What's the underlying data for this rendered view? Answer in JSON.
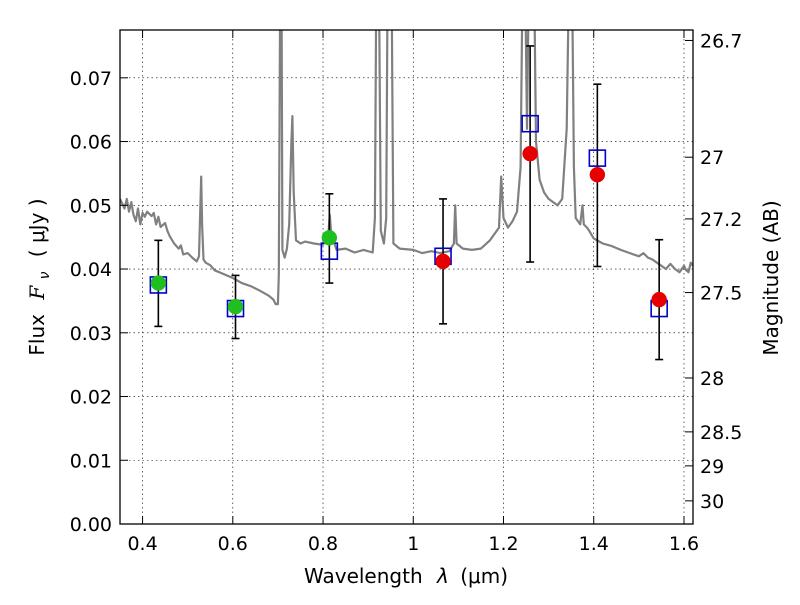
{
  "chart_data": {
    "type": "scatter",
    "xlabel": "Wavelength",
    "xlabel_symbol": "λ",
    "xlabel_unit": "(μm)",
    "ylabel": "Flux",
    "ylabel_symbol": "F",
    "ylabel_subscript": "ν",
    "ylabel_unit": "( μJy )",
    "ylabel_right": "Magnitude (AB)",
    "xlim": [
      0.35,
      1.62
    ],
    "ylim": [
      0.0,
      0.0775
    ],
    "grid": true,
    "x_ticks": [
      {
        "value": 0.4,
        "label": "0.4"
      },
      {
        "value": 0.6,
        "label": "0.6"
      },
      {
        "value": 0.8,
        "label": "0.8"
      },
      {
        "value": 1.0,
        "label": "1"
      },
      {
        "value": 1.2,
        "label": "1.2"
      },
      {
        "value": 1.4,
        "label": "1.4"
      },
      {
        "value": 1.6,
        "label": "1.6"
      }
    ],
    "y_ticks": [
      {
        "value": 0.0,
        "label": "0.00"
      },
      {
        "value": 0.01,
        "label": "0.01"
      },
      {
        "value": 0.02,
        "label": "0.02"
      },
      {
        "value": 0.03,
        "label": "0.03"
      },
      {
        "value": 0.04,
        "label": "0.04"
      },
      {
        "value": 0.05,
        "label": "0.05"
      },
      {
        "value": 0.06,
        "label": "0.06"
      },
      {
        "value": 0.07,
        "label": "0.07"
      }
    ],
    "mag_ticks": [
      {
        "mag": 26.7,
        "label": "26.7"
      },
      {
        "mag": 27.0,
        "label": "27"
      },
      {
        "mag": 27.2,
        "label": "27.2"
      },
      {
        "mag": 27.5,
        "label": "27.5"
      },
      {
        "mag": 28.0,
        "label": "28"
      },
      {
        "mag": 28.5,
        "label": "28.5"
      },
      {
        "mag": 29.0,
        "label": "29"
      },
      {
        "mag": 30.0,
        "label": "30"
      }
    ],
    "observed": [
      {
        "x": 0.435,
        "y": 0.0378,
        "err_low": 0.031,
        "err_high": 0.0445,
        "color": "#1fbf1f"
      },
      {
        "x": 0.606,
        "y": 0.0341,
        "err_low": 0.0291,
        "err_high": 0.039,
        "color": "#1fbf1f"
      },
      {
        "x": 0.814,
        "y": 0.0449,
        "err_low": 0.0378,
        "err_high": 0.0518,
        "color": "#1fbf1f"
      },
      {
        "x": 1.066,
        "y": 0.0412,
        "err_low": 0.0314,
        "err_high": 0.051,
        "color": "#e60000"
      },
      {
        "x": 1.259,
        "y": 0.0581,
        "err_low": 0.0411,
        "err_high": 0.075,
        "color": "#e60000"
      },
      {
        "x": 1.408,
        "y": 0.0548,
        "err_low": 0.0404,
        "err_high": 0.069,
        "color": "#e60000"
      },
      {
        "x": 1.545,
        "y": 0.0352,
        "err_low": 0.0258,
        "err_high": 0.0446,
        "color": "#e60000"
      }
    ],
    "model_photometry": [
      {
        "x": 0.435,
        "y": 0.0375
      },
      {
        "x": 0.606,
        "y": 0.0338
      },
      {
        "x": 0.814,
        "y": 0.0428
      },
      {
        "x": 1.066,
        "y": 0.042
      },
      {
        "x": 1.259,
        "y": 0.0628
      },
      {
        "x": 1.408,
        "y": 0.0574
      },
      {
        "x": 1.545,
        "y": 0.0338
      }
    ],
    "spectrum": [
      [
        0.35,
        0.051
      ],
      [
        0.36,
        0.0495
      ],
      [
        0.365,
        0.051
      ],
      [
        0.37,
        0.049
      ],
      [
        0.375,
        0.0505
      ],
      [
        0.38,
        0.0485
      ],
      [
        0.385,
        0.0475
      ],
      [
        0.39,
        0.0495
      ],
      [
        0.395,
        0.047
      ],
      [
        0.4,
        0.0488
      ],
      [
        0.405,
        0.0482
      ],
      [
        0.41,
        0.049
      ],
      [
        0.42,
        0.0483
      ],
      [
        0.425,
        0.0488
      ],
      [
        0.43,
        0.047
      ],
      [
        0.435,
        0.0482
      ],
      [
        0.44,
        0.0466
      ],
      [
        0.45,
        0.0472
      ],
      [
        0.455,
        0.046
      ],
      [
        0.46,
        0.0452
      ],
      [
        0.47,
        0.044
      ],
      [
        0.48,
        0.0432
      ],
      [
        0.485,
        0.0437
      ],
      [
        0.49,
        0.0423
      ],
      [
        0.5,
        0.0425
      ],
      [
        0.51,
        0.0418
      ],
      [
        0.52,
        0.0412
      ],
      [
        0.525,
        0.042
      ],
      [
        0.528,
        0.0495
      ],
      [
        0.53,
        0.0545
      ],
      [
        0.532,
        0.047
      ],
      [
        0.535,
        0.0415
      ],
      [
        0.54,
        0.041
      ],
      [
        0.55,
        0.0406
      ],
      [
        0.56,
        0.0398
      ],
      [
        0.58,
        0.0392
      ],
      [
        0.6,
        0.0386
      ],
      [
        0.62,
        0.0378
      ],
      [
        0.64,
        0.0373
      ],
      [
        0.66,
        0.0366
      ],
      [
        0.68,
        0.0358
      ],
      [
        0.69,
        0.0352
      ],
      [
        0.695,
        0.0345
      ],
      [
        0.7,
        0.0345
      ],
      [
        0.702,
        0.039
      ],
      [
        0.705,
        0.085
      ],
      [
        0.708,
        0.085
      ],
      [
        0.71,
        0.043
      ],
      [
        0.715,
        0.0418
      ],
      [
        0.72,
        0.0432
      ],
      [
        0.725,
        0.047
      ],
      [
        0.73,
        0.06
      ],
      [
        0.732,
        0.064
      ],
      [
        0.735,
        0.052
      ],
      [
        0.74,
        0.0445
      ],
      [
        0.75,
        0.044
      ],
      [
        0.76,
        0.0443
      ],
      [
        0.78,
        0.044
      ],
      [
        0.8,
        0.0438
      ],
      [
        0.812,
        0.0455
      ],
      [
        0.815,
        0.0485
      ],
      [
        0.818,
        0.0455
      ],
      [
        0.83,
        0.043
      ],
      [
        0.85,
        0.0432
      ],
      [
        0.87,
        0.0426
      ],
      [
        0.89,
        0.043
      ],
      [
        0.91,
        0.0426
      ],
      [
        0.915,
        0.048
      ],
      [
        0.918,
        0.085
      ],
      [
        0.924,
        0.085
      ],
      [
        0.928,
        0.046
      ],
      [
        0.935,
        0.044
      ],
      [
        0.94,
        0.048
      ],
      [
        0.943,
        0.085
      ],
      [
        0.952,
        0.085
      ],
      [
        0.956,
        0.044
      ],
      [
        0.97,
        0.0432
      ],
      [
        1.0,
        0.043
      ],
      [
        1.02,
        0.0425
      ],
      [
        1.04,
        0.0428
      ],
      [
        1.06,
        0.0425
      ],
      [
        1.08,
        0.0428
      ],
      [
        1.09,
        0.044
      ],
      [
        1.093,
        0.05
      ],
      [
        1.096,
        0.044
      ],
      [
        1.11,
        0.0432
      ],
      [
        1.13,
        0.043
      ],
      [
        1.15,
        0.0432
      ],
      [
        1.17,
        0.0445
      ],
      [
        1.19,
        0.0465
      ],
      [
        1.195,
        0.0545
      ],
      [
        1.2,
        0.048
      ],
      [
        1.21,
        0.0465
      ],
      [
        1.22,
        0.0475
      ],
      [
        1.23,
        0.049
      ],
      [
        1.238,
        0.056
      ],
      [
        1.242,
        0.085
      ],
      [
        1.248,
        0.085
      ],
      [
        1.252,
        0.062
      ],
      [
        1.256,
        0.085
      ],
      [
        1.268,
        0.085
      ],
      [
        1.272,
        0.06
      ],
      [
        1.28,
        0.054
      ],
      [
        1.29,
        0.052
      ],
      [
        1.3,
        0.051
      ],
      [
        1.31,
        0.0505
      ],
      [
        1.32,
        0.05
      ],
      [
        1.33,
        0.051
      ],
      [
        1.34,
        0.062
      ],
      [
        1.345,
        0.085
      ],
      [
        1.352,
        0.085
      ],
      [
        1.356,
        0.056
      ],
      [
        1.36,
        0.048
      ],
      [
        1.37,
        0.047
      ],
      [
        1.375,
        0.05
      ],
      [
        1.378,
        0.047
      ],
      [
        1.385,
        0.0465
      ],
      [
        1.39,
        0.046
      ],
      [
        1.4,
        0.0448
      ],
      [
        1.42,
        0.044
      ],
      [
        1.44,
        0.0436
      ],
      [
        1.46,
        0.043
      ],
      [
        1.48,
        0.0425
      ],
      [
        1.5,
        0.042
      ],
      [
        1.51,
        0.0425
      ],
      [
        1.52,
        0.0418
      ],
      [
        1.53,
        0.0415
      ],
      [
        1.54,
        0.041
      ],
      [
        1.55,
        0.0405
      ],
      [
        1.56,
        0.04
      ],
      [
        1.57,
        0.0408
      ],
      [
        1.58,
        0.04
      ],
      [
        1.59,
        0.0395
      ],
      [
        1.6,
        0.0405
      ],
      [
        1.605,
        0.0398
      ],
      [
        1.61,
        0.0395
      ],
      [
        1.615,
        0.041
      ],
      [
        1.62,
        0.0405
      ]
    ],
    "spectrum_color": "#808080",
    "model_marker_color": "#0000cc"
  }
}
